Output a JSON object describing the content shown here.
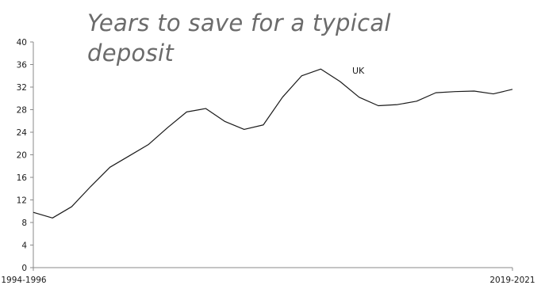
{
  "chart_data": {
    "type": "line",
    "title": "Years to save for a typical deposit",
    "xlabel": "",
    "ylabel": "",
    "x_tick_labels": [
      "1994-1996",
      "2019-2021"
    ],
    "ylim": [
      0,
      40
    ],
    "yticks": [
      0,
      4,
      8,
      12,
      16,
      20,
      24,
      28,
      32,
      36,
      40
    ],
    "grid": false,
    "colors": {
      "line": "#1a1a1a",
      "axis": "#8a8a8a",
      "title": "#6b6b6b"
    },
    "series": [
      {
        "name": "UK",
        "values": [
          9.8,
          8.8,
          10.8,
          14.4,
          17.8,
          19.8,
          21.8,
          24.8,
          27.6,
          28.2,
          25.9,
          24.5,
          25.3,
          30.2,
          34.0,
          35.2,
          33.0,
          30.2,
          28.7,
          28.9,
          29.5,
          31.0,
          31.2,
          31.3,
          30.8,
          31.6
        ]
      }
    ]
  }
}
